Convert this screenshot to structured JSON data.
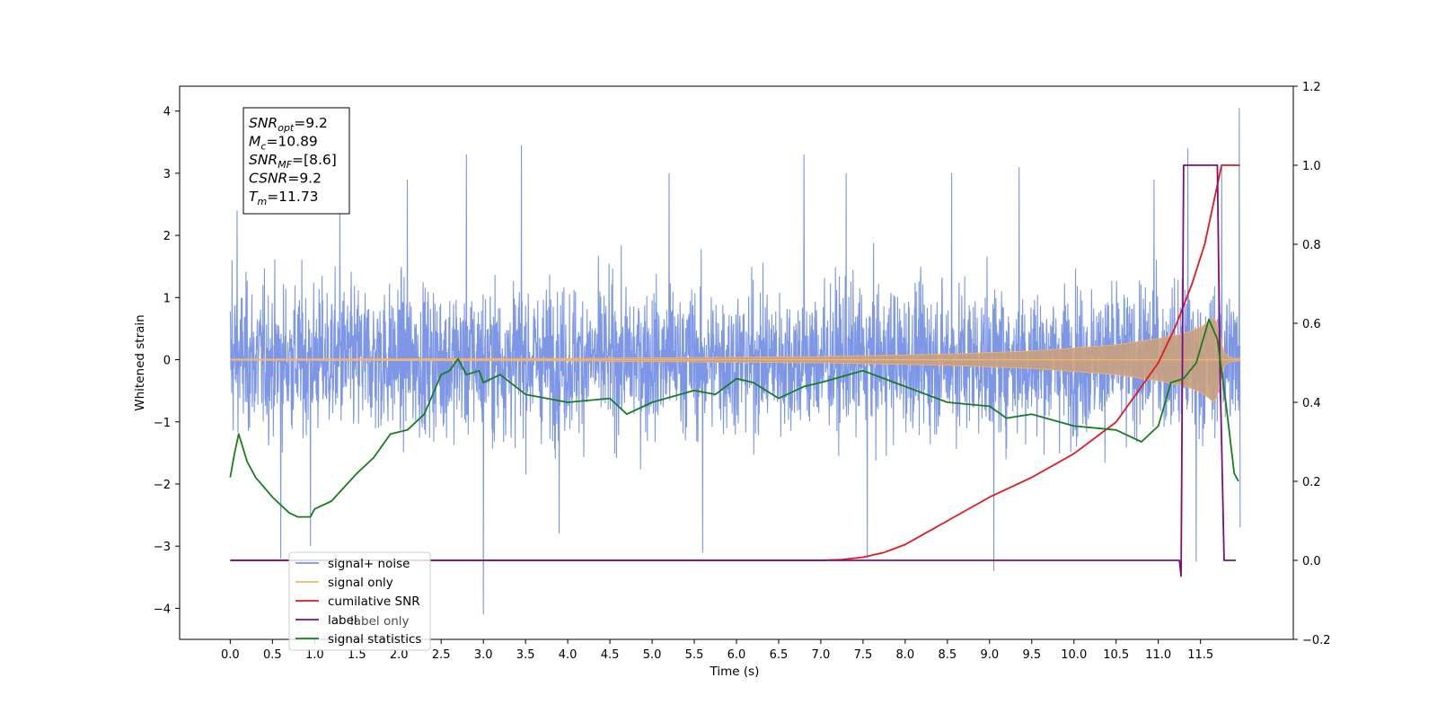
{
  "chart_data": {
    "type": "line",
    "xlabel": "Time (s)",
    "ylabel": "Whitened strain",
    "xlim": [
      -0.6,
      12.6
    ],
    "ylim_left": [
      -4.5,
      4.4
    ],
    "ylim_right": [
      -0.2,
      1.2
    ],
    "x_ticks": [
      "0.0",
      "0.5",
      "1.0",
      "1.5",
      "2.0",
      "2.5",
      "3.0",
      "3.5",
      "4.0",
      "4.5",
      "5.0",
      "5.5",
      "6.0",
      "6.5",
      "7.0",
      "7.5",
      "8.0",
      "8.5",
      "9.0",
      "9.5",
      "10.0",
      "10.5",
      "11.0",
      "11.5"
    ],
    "y_ticks_left": [
      "4",
      "3",
      "2",
      "1",
      "0",
      "−1",
      "−2",
      "−3",
      "−4"
    ],
    "y_ticks_right": [
      "1.2",
      "1.0",
      "0.8",
      "0.6",
      "0.4",
      "0.2",
      "0.0",
      "−0.2"
    ],
    "info_box": {
      "lines": [
        {
          "main": "SNR",
          "sub": "opt",
          "value": "=9.2"
        },
        {
          "main": "M",
          "sub": "c",
          "value": "=10.89"
        },
        {
          "main": "SNR",
          "sub": "MF",
          "value": "=[8.6]"
        },
        {
          "main": "CSNR",
          "sub": "",
          "value": "=9.2"
        },
        {
          "main": "T",
          "sub": "m",
          "value": "=11.73"
        }
      ]
    },
    "legend": {
      "placement": "lower-left",
      "entries": [
        "signal+ noise",
        "signal only",
        "cumilative SNR",
        "label",
        "signal statistics"
      ],
      "hidden_entry_behind": "label only"
    },
    "series": [
      {
        "name": "signal+ noise",
        "axis": "left",
        "color": "#7a95e6",
        "style": "noise band",
        "envelope_typical": [
          -1.4,
          1.4
        ],
        "peaks": [
          {
            "x": 0.02,
            "y": 1.6
          },
          {
            "x": 0.08,
            "y": 2.4
          },
          {
            "x": 0.6,
            "y": -3.2
          },
          {
            "x": 0.95,
            "y": -3.0
          },
          {
            "x": 1.3,
            "y": 2.6
          },
          {
            "x": 2.1,
            "y": 2.9
          },
          {
            "x": 2.8,
            "y": 3.3
          },
          {
            "x": 3.0,
            "y": -4.1
          },
          {
            "x": 3.45,
            "y": 3.45
          },
          {
            "x": 3.9,
            "y": -2.8
          },
          {
            "x": 5.2,
            "y": 3.0
          },
          {
            "x": 5.6,
            "y": -3.1
          },
          {
            "x": 6.8,
            "y": 3.3
          },
          {
            "x": 7.3,
            "y": 3.0
          },
          {
            "x": 7.55,
            "y": -3.2
          },
          {
            "x": 8.55,
            "y": 3.0
          },
          {
            "x": 9.05,
            "y": -3.4
          },
          {
            "x": 9.35,
            "y": 3.1
          },
          {
            "x": 10.95,
            "y": 2.9
          },
          {
            "x": 11.35,
            "y": 3.4
          },
          {
            "x": 11.45,
            "y": -3.25
          },
          {
            "x": 11.75,
            "y": 3.1
          },
          {
            "x": 11.96,
            "y": 4.05
          },
          {
            "x": 11.97,
            "y": -2.7
          }
        ]
      },
      {
        "name": "signal only",
        "axis": "left",
        "color": "#f5b56e",
        "style": "chirp envelope",
        "envelope": [
          [
            0.0,
            0.01
          ],
          [
            4.0,
            0.02
          ],
          [
            7.0,
            0.05
          ],
          [
            8.5,
            0.09
          ],
          [
            9.5,
            0.14
          ],
          [
            10.5,
            0.24
          ],
          [
            11.0,
            0.34
          ],
          [
            11.3,
            0.42
          ],
          [
            11.5,
            0.52
          ],
          [
            11.6,
            0.62
          ],
          [
            11.65,
            0.68
          ],
          [
            11.7,
            0.6
          ],
          [
            11.73,
            0.4
          ],
          [
            11.78,
            0.1
          ],
          [
            11.85,
            0.03
          ],
          [
            11.97,
            0.02
          ]
        ]
      },
      {
        "name": "cumilative SNR",
        "axis": "right",
        "color": "#e31a1c",
        "x": [
          0.0,
          7.0,
          7.25,
          7.5,
          7.75,
          8.0,
          8.5,
          9.0,
          9.5,
          10.0,
          10.5,
          11.0,
          11.2,
          11.4,
          11.55,
          11.65,
          11.72,
          11.75,
          11.97
        ],
        "y": [
          0.0,
          0.0,
          0.002,
          0.008,
          0.02,
          0.04,
          0.1,
          0.16,
          0.21,
          0.27,
          0.35,
          0.5,
          0.59,
          0.7,
          0.8,
          0.9,
          0.97,
          1.0,
          1.0
        ]
      },
      {
        "name": "label",
        "axis": "right",
        "color": "#7b107b",
        "x": [
          0.0,
          11.25,
          11.27,
          11.3,
          11.7,
          11.73,
          11.78,
          11.92
        ],
        "y": [
          0.0,
          0.0,
          -0.04,
          1.0,
          1.0,
          0.5,
          0.0,
          0.0
        ]
      },
      {
        "name": "signal statistics",
        "axis": "right",
        "color": "#1a7d1a",
        "x": [
          0.0,
          0.05,
          0.1,
          0.2,
          0.3,
          0.5,
          0.7,
          0.8,
          0.95,
          1.0,
          1.2,
          1.5,
          1.7,
          1.9,
          2.1,
          2.3,
          2.5,
          2.6,
          2.7,
          2.8,
          2.95,
          3.0,
          3.2,
          3.5,
          4.0,
          4.5,
          4.7,
          5.0,
          5.5,
          5.75,
          6.0,
          6.2,
          6.5,
          6.8,
          7.0,
          7.5,
          8.0,
          8.5,
          9.0,
          9.2,
          9.5,
          10.0,
          10.5,
          10.8,
          11.0,
          11.15,
          11.3,
          11.45,
          11.6,
          11.7,
          11.8,
          11.9,
          11.95
        ],
        "y": [
          0.21,
          0.27,
          0.32,
          0.25,
          0.21,
          0.16,
          0.12,
          0.11,
          0.11,
          0.13,
          0.15,
          0.22,
          0.26,
          0.32,
          0.33,
          0.37,
          0.47,
          0.48,
          0.51,
          0.47,
          0.48,
          0.45,
          0.47,
          0.42,
          0.4,
          0.41,
          0.37,
          0.4,
          0.43,
          0.42,
          0.46,
          0.45,
          0.41,
          0.44,
          0.45,
          0.48,
          0.44,
          0.4,
          0.39,
          0.36,
          0.37,
          0.34,
          0.33,
          0.3,
          0.34,
          0.45,
          0.46,
          0.5,
          0.61,
          0.56,
          0.4,
          0.22,
          0.2
        ]
      }
    ]
  }
}
